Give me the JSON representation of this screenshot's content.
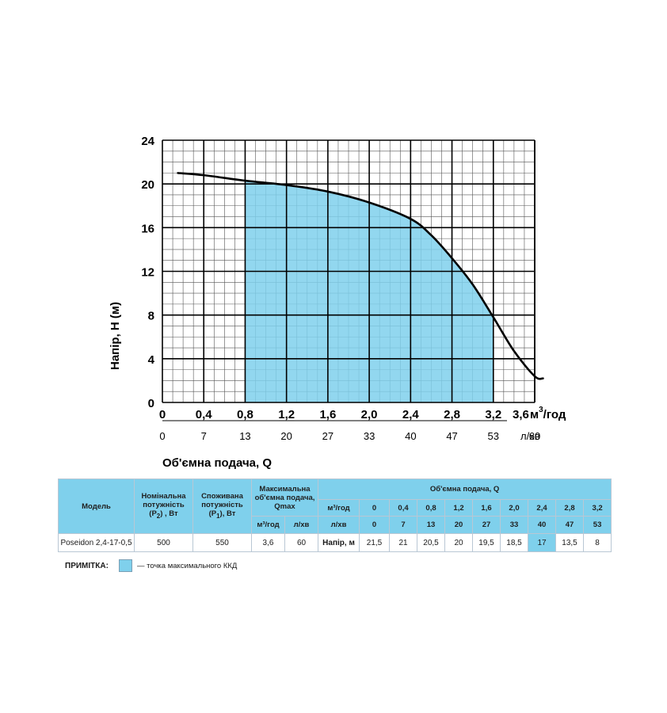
{
  "chart_data": {
    "type": "line",
    "xlabel": "Об'ємна подача, Q",
    "ylabel": "Напір, H (м)",
    "ylim": [
      0,
      24
    ],
    "xlim": [
      0,
      3.6
    ],
    "grid": true,
    "y_ticks": [
      "0",
      "4",
      "8",
      "12",
      "16",
      "20",
      "24"
    ],
    "x_ticks_m3h": [
      "0",
      "0,4",
      "0,8",
      "1,2",
      "1,6",
      "2,0",
      "2,4",
      "2,8",
      "3,2",
      "3,6"
    ],
    "x_unit_m3h": "м",
    "x_unit_m3h_sup": "3",
    "x_unit_m3h_tail": "/год",
    "x_ticks_lmin": [
      "0",
      "7",
      "13",
      "20",
      "27",
      "33",
      "40",
      "47",
      "53",
      "60"
    ],
    "x_unit_lmin": "л/хв",
    "series": [
      {
        "x": [
          0.15,
          0.4,
          0.8,
          1.2,
          1.6,
          2.0,
          2.4,
          2.6,
          2.8,
          3.0,
          3.2,
          3.4,
          3.6,
          3.68
        ],
        "y": [
          21.0,
          20.8,
          20.3,
          19.9,
          19.3,
          18.3,
          16.8,
          15.3,
          13.2,
          10.8,
          7.8,
          4.7,
          2.4,
          2.2
        ]
      }
    ],
    "highlight_region": {
      "x_from": 0.8,
      "x_to": 3.2,
      "color": "#7fd0ec"
    }
  },
  "table": {
    "headers": {
      "model": "Модель",
      "nominal_power": "Номінальна потужність",
      "nominal_power_sym": "(P",
      "nominal_power_sub": "2",
      "nominal_power_tail": ") , Вт",
      "consumed_power": "Споживана потужність",
      "consumed_power_sym": "(P",
      "consumed_power_sub": "1",
      "consumed_power_tail": "), Вт",
      "max_flow": "Максимальна об'ємна подача, Qmax",
      "max_m3h": "м³/год",
      "max_lmin": "л/хв",
      "flow": "Об'ємна подача, Q",
      "row_m3h": "м³/год",
      "row_lmin": "л/хв",
      "flows_m3h": [
        "0",
        "0,4",
        "0,8",
        "1,2",
        "1,6",
        "2,0",
        "2,4",
        "2,8",
        "3,2"
      ],
      "flows_lmin": [
        "0",
        "7",
        "13",
        "20",
        "27",
        "33",
        "40",
        "47",
        "53"
      ]
    },
    "row": {
      "model": "Poseidon 2,4-17-0,5",
      "nominal_power": "500",
      "consumed_power": "550",
      "qmax_m3h": "3,6",
      "qmax_lmin": "60",
      "head_label": "Напір, м",
      "heads": [
        "21,5",
        "21",
        "20,5",
        "20",
        "19,5",
        "18,5",
        "17",
        "13,5",
        "8"
      ],
      "highlight_index": 6
    }
  },
  "note": {
    "label": "ПРИМІТКА:",
    "text": "— точка максимального ККД",
    "color": "#7fd0ec"
  }
}
